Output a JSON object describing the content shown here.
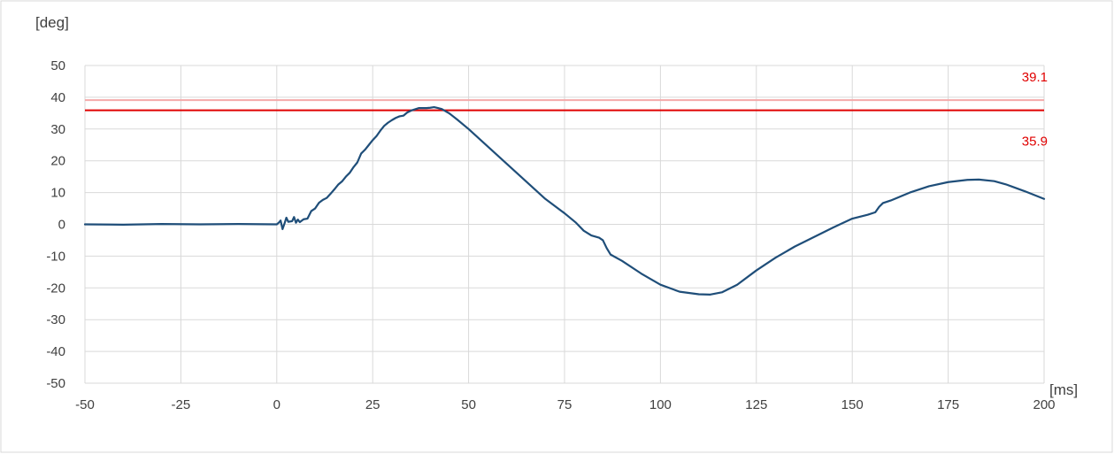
{
  "chart_data": {
    "type": "line",
    "title": "",
    "ylabel": "[deg]",
    "xlabel": "[ms]",
    "xlim": [
      -50,
      200
    ],
    "ylim": [
      -50,
      50
    ],
    "x_ticks": [
      -50,
      -25,
      0,
      25,
      50,
      75,
      100,
      125,
      150,
      175,
      200
    ],
    "y_ticks": [
      -50,
      -40,
      -30,
      -20,
      -10,
      0,
      10,
      20,
      30,
      40,
      50
    ],
    "grid": true,
    "reference_lines": [
      {
        "label": "39.1",
        "value": 39.1,
        "color": "#f4aaaa"
      },
      {
        "label": "35.9",
        "value": 35.9,
        "color": "#e00000"
      }
    ],
    "reference_label_color": "#e00000",
    "series": [
      {
        "color": "#1f4e79",
        "points": [
          [
            -50,
            0
          ],
          [
            -40,
            -0.1
          ],
          [
            -30,
            0.1
          ],
          [
            -20,
            0
          ],
          [
            -10,
            0.1
          ],
          [
            0,
            0
          ],
          [
            0.5,
            0.5
          ],
          [
            1,
            1.2
          ],
          [
            1.5,
            -1.5
          ],
          [
            2,
            0.2
          ],
          [
            2.5,
            2.1
          ],
          [
            3,
            0.8
          ],
          [
            4,
            1.0
          ],
          [
            4.5,
            2.3
          ],
          [
            5,
            0.5
          ],
          [
            5.5,
            1.5
          ],
          [
            6,
            0.7
          ],
          [
            7,
            1.6
          ],
          [
            8,
            1.8
          ],
          [
            9,
            4.2
          ],
          [
            10,
            5.0
          ],
          [
            11,
            6.8
          ],
          [
            12,
            7.7
          ],
          [
            13,
            8.3
          ],
          [
            14,
            9.6
          ],
          [
            15,
            11.0
          ],
          [
            16,
            12.5
          ],
          [
            17,
            13.5
          ],
          [
            18,
            15.0
          ],
          [
            19,
            16.2
          ],
          [
            20,
            18.0
          ],
          [
            21,
            19.5
          ],
          [
            22,
            22.3
          ],
          [
            23,
            23.5
          ],
          [
            24,
            25.0
          ],
          [
            25,
            26.5
          ],
          [
            26,
            27.8
          ],
          [
            27,
            29.5
          ],
          [
            28,
            31.0
          ],
          [
            29,
            32.0
          ],
          [
            30,
            32.8
          ],
          [
            31,
            33.5
          ],
          [
            32,
            34.0
          ],
          [
            33,
            34.2
          ],
          [
            34,
            35.2
          ],
          [
            35,
            35.8
          ],
          [
            36,
            36.2
          ],
          [
            37,
            36.6
          ],
          [
            38,
            36.6
          ],
          [
            39,
            36.6
          ],
          [
            40,
            36.7
          ],
          [
            41,
            36.9
          ],
          [
            42,
            36.6
          ],
          [
            43,
            36.3
          ],
          [
            44,
            35.6
          ],
          [
            45,
            34.9
          ],
          [
            47,
            33.0
          ],
          [
            50,
            30.0
          ],
          [
            55,
            24.5
          ],
          [
            60,
            19.0
          ],
          [
            65,
            13.5
          ],
          [
            70,
            8.0
          ],
          [
            75,
            3.5
          ],
          [
            78,
            0.5
          ],
          [
            80,
            -2.0
          ],
          [
            82,
            -3.5
          ],
          [
            84,
            -4.2
          ],
          [
            85,
            -5.0
          ],
          [
            86,
            -7.5
          ],
          [
            87,
            -9.5
          ],
          [
            90,
            -11.5
          ],
          [
            95,
            -15.5
          ],
          [
            100,
            -19.0
          ],
          [
            105,
            -21.2
          ],
          [
            110,
            -22.0
          ],
          [
            113,
            -22.1
          ],
          [
            116,
            -21.4
          ],
          [
            120,
            -19.0
          ],
          [
            125,
            -14.5
          ],
          [
            130,
            -10.5
          ],
          [
            135,
            -7.0
          ],
          [
            140,
            -4.0
          ],
          [
            145,
            -1.0
          ],
          [
            150,
            1.8
          ],
          [
            154,
            3.0
          ],
          [
            156,
            3.8
          ],
          [
            157,
            5.5
          ],
          [
            158,
            6.7
          ],
          [
            160,
            7.5
          ],
          [
            165,
            10.0
          ],
          [
            170,
            12.0
          ],
          [
            175,
            13.3
          ],
          [
            180,
            14.0
          ],
          [
            183,
            14.1
          ],
          [
            187,
            13.6
          ],
          [
            190,
            12.6
          ],
          [
            195,
            10.4
          ],
          [
            200,
            8.0
          ]
        ]
      }
    ]
  }
}
